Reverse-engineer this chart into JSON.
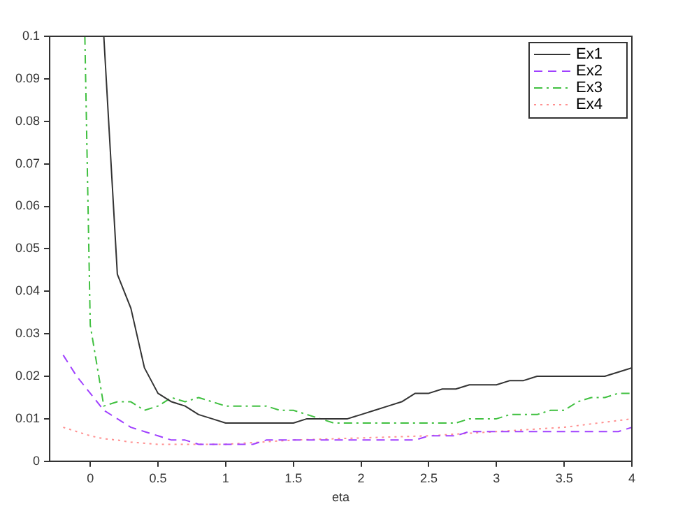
{
  "chart_data": {
    "type": "line",
    "xlabel": "eta",
    "xlim": [
      -0.3,
      4
    ],
    "xticks": [
      0,
      0.5,
      1,
      1.5,
      2,
      2.5,
      3,
      3.5,
      4
    ],
    "ylim": [
      0,
      0.1
    ],
    "yticks": [
      0,
      0.01,
      0.02,
      0.03,
      0.04,
      0.05,
      0.06,
      0.07,
      0.08,
      0.09,
      0.1
    ],
    "grid": false,
    "legend": "top right",
    "marker": "none",
    "series": [
      {
        "name": "Ex1",
        "color": "#333333",
        "line_style": "solid",
        "x": [
          0.1,
          0.2,
          0.3,
          0.4,
          0.5,
          0.6,
          0.7,
          0.8,
          0.9,
          1.0,
          1.5,
          1.6,
          1.9,
          2.0,
          2.1,
          2.2,
          2.3,
          2.4,
          2.5,
          2.6,
          2.7,
          2.8,
          3.0,
          3.1,
          3.2,
          3.3,
          3.8,
          3.9,
          4.0
        ],
        "values": [
          0.1,
          0.044,
          0.036,
          0.022,
          0.016,
          0.014,
          0.013,
          0.011,
          0.01,
          0.009,
          0.009,
          0.01,
          0.01,
          0.011,
          0.012,
          0.013,
          0.014,
          0.016,
          0.016,
          0.017,
          0.017,
          0.018,
          0.018,
          0.019,
          0.019,
          0.02,
          0.02,
          0.021,
          0.022
        ]
      },
      {
        "name": "Ex2",
        "color": "#a040ff",
        "line_style": "dashed",
        "x": [
          -0.2,
          -0.1,
          0,
          0.1,
          0.2,
          0.3,
          0.4,
          0.5,
          0.6,
          0.7,
          0.8,
          1.2,
          1.3,
          2.4,
          2.5,
          2.7,
          2.8,
          3.8,
          3.9,
          4.0
        ],
        "values": [
          0.025,
          0.02,
          0.016,
          0.012,
          0.01,
          0.008,
          0.007,
          0.006,
          0.005,
          0.005,
          0.004,
          0.004,
          0.005,
          0.005,
          0.006,
          0.006,
          0.007,
          0.007,
          0.007,
          0.008
        ]
      },
      {
        "name": "Ex3",
        "color": "#40c040",
        "line_style": "dashdot",
        "x": [
          -0.04,
          0,
          0.1,
          0.2,
          0.3,
          0.4,
          0.5,
          0.6,
          0.7,
          0.8,
          0.9,
          1.0,
          1.3,
          1.4,
          1.5,
          1.6,
          1.7,
          1.8,
          2.7,
          2.8,
          3.0,
          3.1,
          3.3,
          3.4,
          3.5,
          3.6,
          3.7,
          3.8,
          3.9,
          4.0
        ],
        "values": [
          0.1,
          0.032,
          0.013,
          0.014,
          0.014,
          0.012,
          0.013,
          0.015,
          0.014,
          0.015,
          0.014,
          0.013,
          0.013,
          0.012,
          0.012,
          0.011,
          0.01,
          0.009,
          0.009,
          0.01,
          0.01,
          0.011,
          0.011,
          0.012,
          0.012,
          0.014,
          0.015,
          0.015,
          0.016,
          0.016
        ]
      },
      {
        "name": "Ex4",
        "color": "#ff9090",
        "line_style": "dotted",
        "x": [
          -0.2,
          -0.1,
          0,
          0.1,
          0.2,
          0.3,
          0.5,
          1.0,
          1.5,
          2.0,
          2.5,
          3.0,
          3.5,
          4.0
        ],
        "values": [
          0.008,
          0.007,
          0.006,
          0.0053,
          0.005,
          0.0045,
          0.004,
          0.004,
          0.005,
          0.0055,
          0.006,
          0.007,
          0.008,
          0.01
        ]
      }
    ]
  }
}
